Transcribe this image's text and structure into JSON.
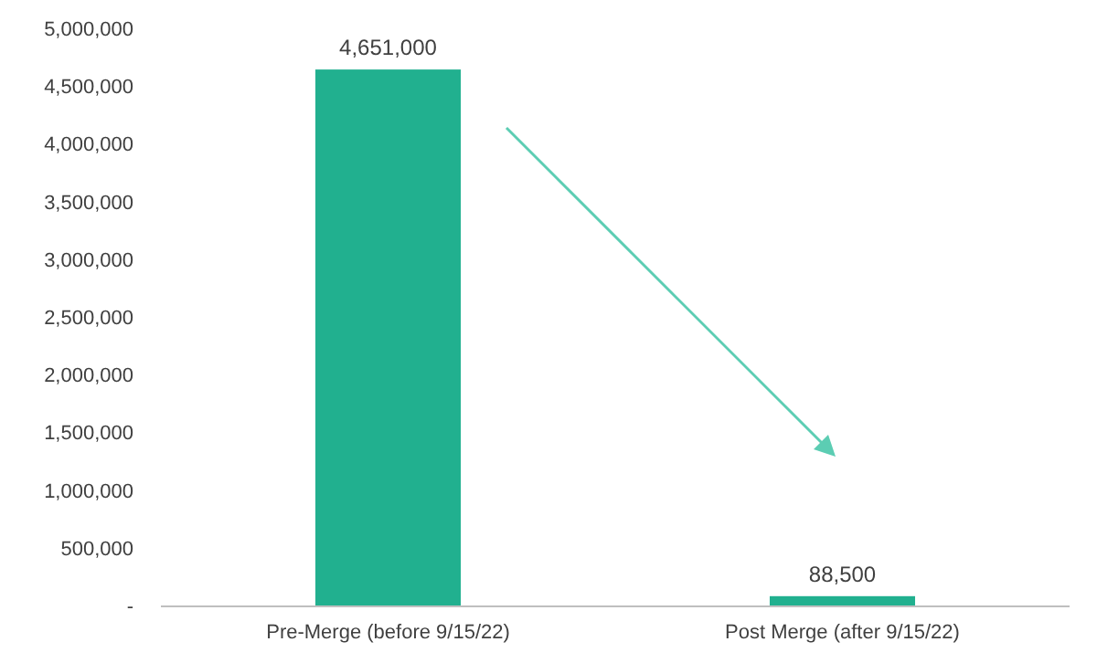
{
  "chart_data": {
    "type": "bar",
    "categories": [
      "Pre-Merge (before 9/15/22)",
      "Post Merge (after 9/15/22)"
    ],
    "values": [
      4651000,
      88500
    ],
    "value_labels": [
      "4,651,000",
      "88,500"
    ],
    "color": "#21b08f",
    "ylim": [
      0,
      5000000
    ],
    "yticks": [
      {
        "value": 0,
        "label": "-"
      },
      {
        "value": 500000,
        "label": "500,000"
      },
      {
        "value": 1000000,
        "label": "1,000,000"
      },
      {
        "value": 1500000,
        "label": "1,500,000"
      },
      {
        "value": 2000000,
        "label": "2,000,000"
      },
      {
        "value": 2500000,
        "label": "2,500,000"
      },
      {
        "value": 3000000,
        "label": "3,000,000"
      },
      {
        "value": 3500000,
        "label": "3,500,000"
      },
      {
        "value": 4000000,
        "label": "4,000,000"
      },
      {
        "value": 4500000,
        "label": "4,500,000"
      },
      {
        "value": 5000000,
        "label": "5,000,000"
      }
    ]
  }
}
